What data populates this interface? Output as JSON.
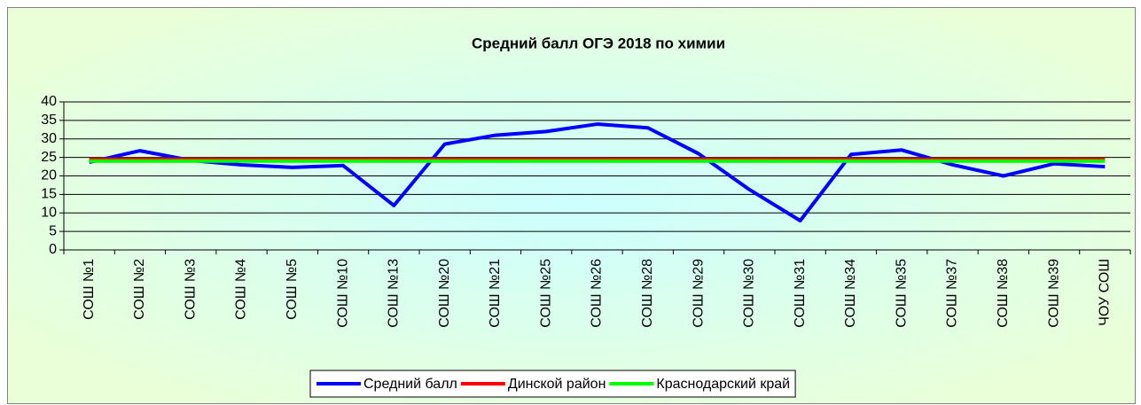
{
  "chart_data": {
    "type": "line",
    "title": "Средний балл ОГЭ 2018 по химии",
    "categories": [
      "СОШ №1",
      "СОШ №2",
      "СОШ №3",
      "СОШ №4",
      "СОШ №5",
      "СОШ №10",
      "СОШ №13",
      "СОШ №20",
      "СОШ №21",
      "СОШ №25",
      "СОШ №26",
      "СОШ №28",
      "СОШ №29",
      "СОШ №30",
      "СОШ №31",
      "СОШ №34",
      "СОШ №35",
      "СОШ №37",
      "СОШ №38",
      "СОШ №39",
      "ЧОУ СОШ"
    ],
    "series": [
      {
        "name": "Средний балл",
        "color": "#0000ff",
        "values": [
          23.7,
          26.8,
          24.2,
          23,
          22.3,
          22.8,
          12,
          28.6,
          31,
          32,
          34,
          33,
          26,
          16.3,
          7.9,
          25.8,
          27,
          23,
          20,
          23.3,
          22.5
        ]
      },
      {
        "name": "Динской район",
        "color": "#ff0000",
        "values": [
          24.5,
          24.5,
          24.5,
          24.5,
          24.5,
          24.5,
          24.5,
          24.5,
          24.5,
          24.5,
          24.5,
          24.5,
          24.5,
          24.5,
          24.5,
          24.5,
          24.5,
          24.5,
          24.5,
          24.5,
          24.5
        ]
      },
      {
        "name": "Краснодарский край",
        "color": "#00ff00",
        "values": [
          24,
          24,
          24,
          24,
          24,
          24,
          24,
          24,
          24,
          24,
          24,
          24,
          24,
          24,
          24,
          24,
          24,
          24,
          24,
          24,
          24
        ]
      }
    ],
    "ylim": [
      0,
      40
    ],
    "yticks": [
      0,
      5,
      10,
      15,
      20,
      25,
      30,
      35,
      40
    ],
    "grid": true,
    "legend": "bottom"
  }
}
